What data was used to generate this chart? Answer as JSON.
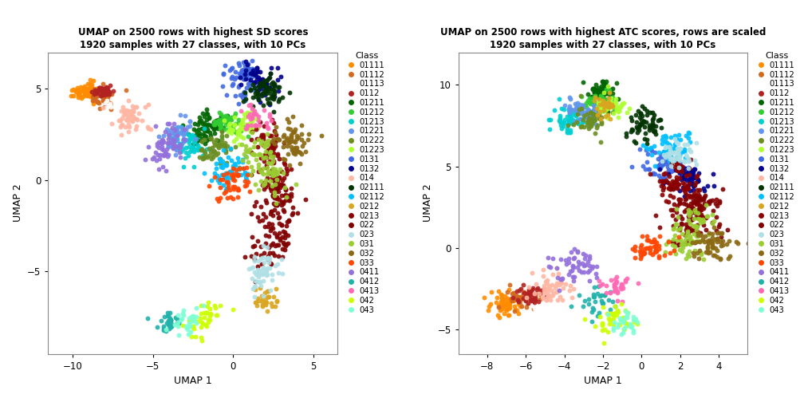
{
  "title1": "UMAP on 2500 rows with highest SD scores\n1920 samples with 27 classes, with 10 PCs",
  "title2": "UMAP on 2500 rows with highest ATC scores, rows are scaled\n1920 samples with 27 classes, with 10 PCs",
  "xlabel": "UMAP 1",
  "ylabel": "UMAP 2",
  "legend_title": "Class",
  "xlim1": [
    -11.5,
    6.5
  ],
  "ylim1": [
    -9.5,
    7.0
  ],
  "xlim2": [
    -9.5,
    5.5
  ],
  "ylim2": [
    -6.5,
    12.0
  ],
  "xticks1": [
    -10,
    -5,
    0,
    5
  ],
  "yticks1": [
    -5,
    0,
    5
  ],
  "xticks2": [
    -8,
    -6,
    -4,
    -2,
    0,
    2,
    4
  ],
  "yticks2": [
    -5,
    0,
    5,
    10
  ],
  "classes": [
    "01111",
    "01112",
    "01113",
    "0112",
    "01211",
    "01212",
    "01213",
    "01221",
    "01222",
    "01223",
    "0131",
    "0132",
    "014",
    "02111",
    "02112",
    "0212",
    "0213",
    "022",
    "023",
    "031",
    "032",
    "033",
    "0411",
    "0412",
    "0413",
    "042",
    "043"
  ],
  "colors": [
    "#FF8C00",
    "#D2691E",
    "#FFFFFF",
    "#B22222",
    "#006400",
    "#32CD32",
    "#00CED1",
    "#6495ED",
    "#6B8E23",
    "#ADFF2F",
    "#4169E1",
    "#00008B",
    "#FFB6A3",
    "#003300",
    "#00BFFF",
    "#DAA520",
    "#8B0000",
    "#800000",
    "#B0E0E6",
    "#9ACD32",
    "#8B6914",
    "#FF4500",
    "#9370DB",
    "#20B2AA",
    "#FF69B4",
    "#CCFF00",
    "#7FFFD4"
  ],
  "background": "#FFFFFF",
  "point_size": 18,
  "alpha": 0.9
}
